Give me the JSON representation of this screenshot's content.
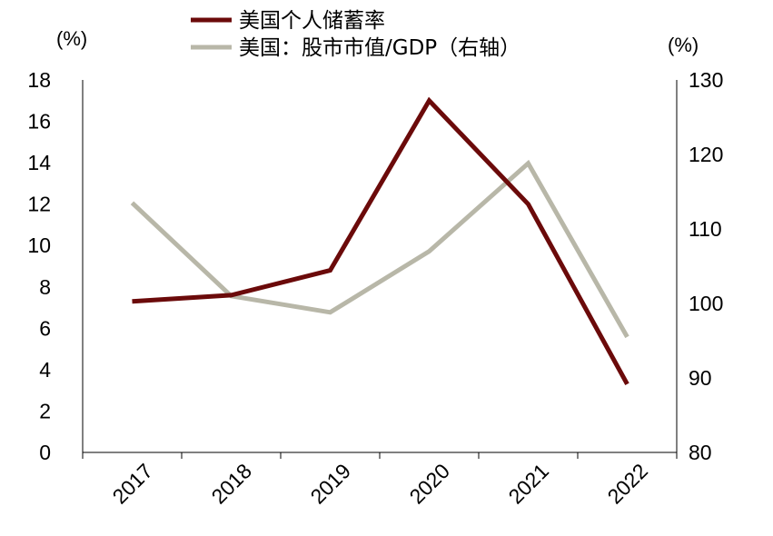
{
  "chart_data": {
    "type": "line",
    "categories": [
      "2017",
      "2018",
      "2019",
      "2020",
      "2021",
      "2022"
    ],
    "left_axis": {
      "unit_label": "(%)",
      "ylim": [
        0,
        18
      ],
      "ticks": [
        "0",
        "2",
        "4",
        "6",
        "8",
        "10",
        "12",
        "14",
        "16",
        "18"
      ]
    },
    "right_axis": {
      "unit_label": "(%)",
      "ylim": [
        80,
        130
      ],
      "ticks": [
        "80",
        "90",
        "100",
        "110",
        "120",
        "130"
      ]
    },
    "series": [
      {
        "name": "美国个人储蓄率",
        "axis": "left",
        "color": "#6b0a0a",
        "values": [
          7.3,
          7.6,
          8.8,
          17.0,
          12.0,
          3.3
        ]
      },
      {
        "name": "美国：股市市值/GDP（右轴）",
        "axis": "right",
        "color": "#b8b7a8",
        "values": [
          113.5,
          101.0,
          98.8,
          107.0,
          118.8,
          95.5
        ]
      }
    ],
    "grid": false,
    "legend_position": "top"
  }
}
